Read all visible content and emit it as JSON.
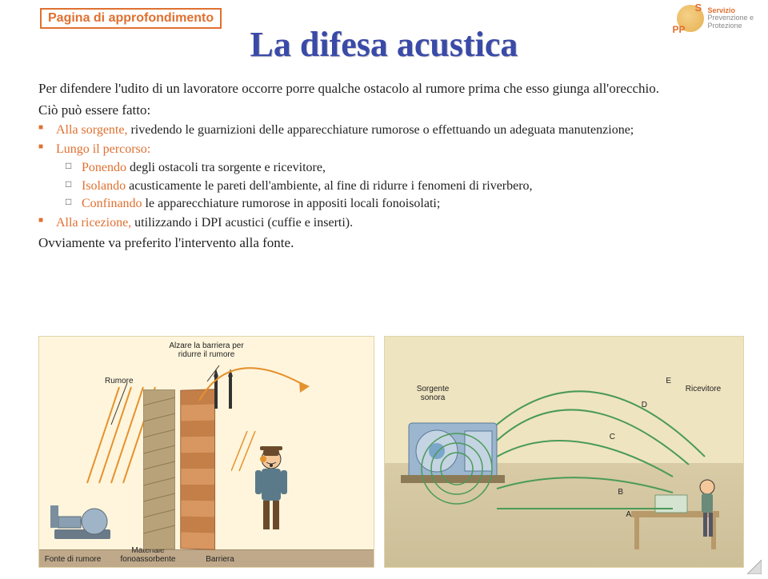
{
  "colors": {
    "accent_orange": "#e07030",
    "title_blue": "#3a4aa8",
    "text": "#222222",
    "illus_bg": "#fef5dc",
    "barrier1": "#d89660",
    "barrier2": "#c47f48",
    "floor": "#bfa98a",
    "room_floor": "#d8cba6",
    "room_wall": "#efe4c0",
    "arc": "#e5922e",
    "path_green": "#4a9a58",
    "machine_blue": "#7aa6c9"
  },
  "header": {
    "badge": "Pagina di approfondimento",
    "logo": {
      "letters_top": "S",
      "letters_bottom": "PP",
      "line1": "Servizio",
      "line2": "Prevenzione e",
      "line3": "Protezione"
    }
  },
  "title": "La difesa acustica",
  "intro": "Per difendere l'udito di un lavoratore occorre porre qualche ostacolo al rumore prima che esso giunga all'orecchio.",
  "lead": "Ciò può essere fatto:",
  "bullets": [
    {
      "color": "#e07030",
      "prefix": "Alla sorgente,",
      "rest": " rivedendo le guarnizioni delle apparecchiature rumorose o effettuando un adeguata manutenzione;"
    },
    {
      "color": "#e07030",
      "prefix": "Lungo il percorso:",
      "rest": "",
      "sub": [
        {
          "prefix": "Ponendo",
          "rest": " degli ostacoli tra sorgente e ricevitore,"
        },
        {
          "prefix": "Isolando",
          "rest": " acusticamente le pareti dell'ambiente, al fine di ridurre i fenomeni di riverbero,"
        },
        {
          "prefix": "Confinando",
          "rest": " le apparecchiature rumorose in appositi locali fonoisolati;"
        }
      ]
    },
    {
      "color": "#e07030",
      "prefix": "Alla ricezione,",
      "rest": " utilizzando i DPI acustici (cuffie e inserti)."
    }
  ],
  "closing": "Ovviamente va preferito l'intervento alla fonte.",
  "illus_left": {
    "top_caption": "Alzare la barriera per ridurre il rumore",
    "rumore": "Rumore",
    "fonte": "Fonte di rumore",
    "materiale": "Materiale fonoassorbente",
    "barriera": "Barriera"
  },
  "illus_right": {
    "sorgente": "Sorgente sonora",
    "ricevitore": "Ricevitore",
    "path_labels": [
      "A",
      "B",
      "C",
      "D",
      "E"
    ]
  }
}
